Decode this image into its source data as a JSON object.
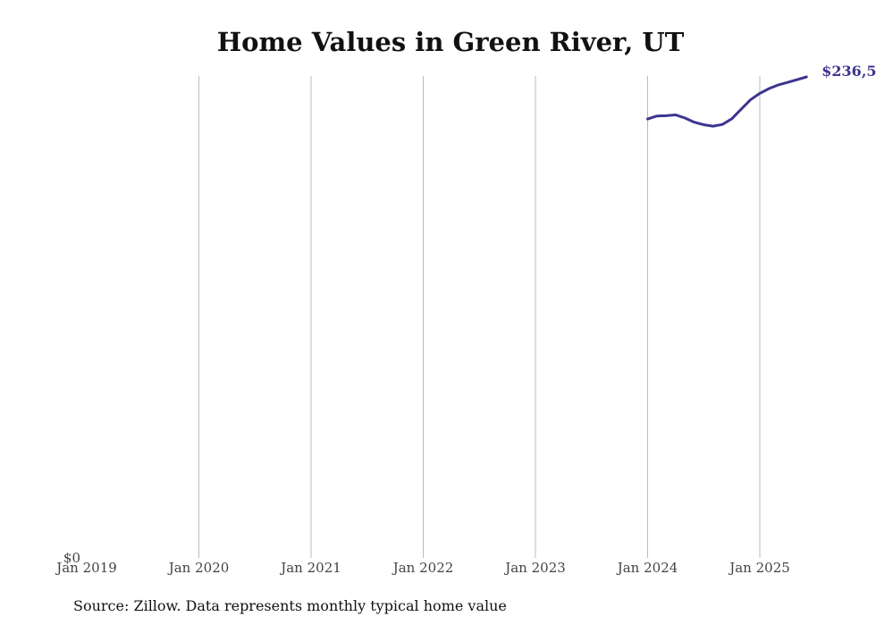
{
  "chart_data": {
    "type": "line",
    "title": "Home Values in Green River, UT",
    "xlabel": "",
    "ylabel": "",
    "x_ticks": [
      "Jan 2019",
      "Jan 2020",
      "Jan 2021",
      "Jan 2022",
      "Jan 2023",
      "Jan 2024",
      "Jan 2025"
    ],
    "y_ticks": [
      {
        "value": 0,
        "label": "$0"
      }
    ],
    "ylim": [
      0,
      236500
    ],
    "grid": "vertical",
    "series": [
      {
        "color": "#3d3590",
        "x": [
          "2024-01",
          "2024-02",
          "2024-03",
          "2024-04",
          "2024-05",
          "2024-06",
          "2024-07",
          "2024-08",
          "2024-09",
          "2024-10",
          "2024-11",
          "2024-12",
          "2025-01",
          "2025-02",
          "2025-03",
          "2025-04",
          "2025-05",
          "2025-06"
        ],
        "values": [
          215800,
          217300,
          217400,
          217800,
          216300,
          214200,
          213000,
          212300,
          213100,
          215900,
          220600,
          225200,
          228400,
          230800,
          232600,
          233800,
          235200,
          236500
        ],
        "end_label": "$236,5"
      }
    ]
  },
  "source": "Source: Zillow. Data represents monthly typical home value"
}
